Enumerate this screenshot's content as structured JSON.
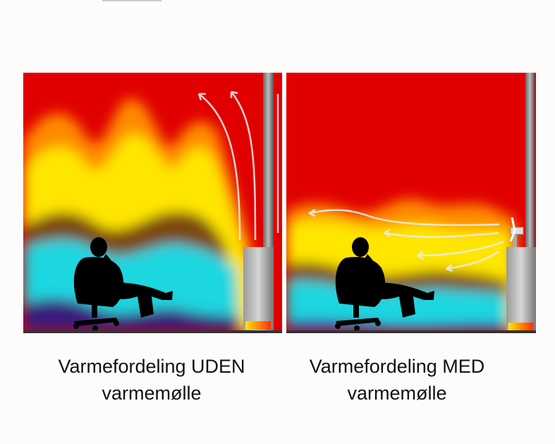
{
  "panels": [
    {
      "caption_line1": "Varmefordeling UDEN",
      "caption_line2": "varmemølle",
      "has_fan": false
    },
    {
      "caption_line1": "Varmefordeling MED",
      "caption_line2": "varmemølle",
      "has_fan": true
    }
  ],
  "colors": {
    "hot": "#e00000",
    "warm": "#ffe600",
    "cool": "#1ad6e0",
    "cold": "#3a1a7a",
    "background": "#fdfcfa"
  }
}
